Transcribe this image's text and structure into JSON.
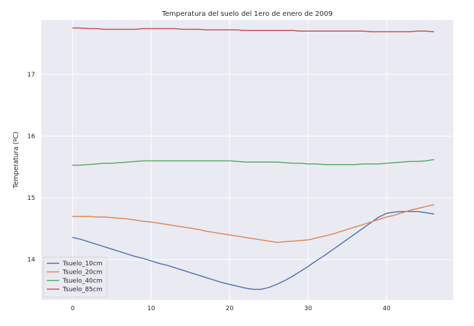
{
  "chart_data": {
    "type": "line",
    "title": "Temperatura del suelo del 1ero de enero de 2009",
    "xlabel": "",
    "ylabel": "Temperatura (ºC)",
    "xlim": [
      -4,
      48.5
    ],
    "ylim": [
      13.35,
      17.88
    ],
    "xticks": [
      0,
      10,
      20,
      30,
      40
    ],
    "yticks": [
      14,
      15,
      16,
      17
    ],
    "grid": true,
    "legend_position": "lower-left",
    "x": [
      0,
      1,
      2,
      3,
      4,
      5,
      6,
      7,
      8,
      9,
      10,
      11,
      12,
      13,
      14,
      15,
      16,
      17,
      18,
      19,
      20,
      21,
      22,
      23,
      24,
      25,
      26,
      27,
      28,
      29,
      30,
      31,
      32,
      33,
      34,
      35,
      36,
      37,
      38,
      39,
      40,
      41,
      42,
      43,
      44,
      45,
      46
    ],
    "series": [
      {
        "name": "Tsuelo_10cm",
        "color": "#4c72b0",
        "values": [
          14.36,
          14.33,
          14.29,
          14.25,
          14.21,
          14.17,
          14.13,
          14.09,
          14.05,
          14.02,
          13.98,
          13.94,
          13.91,
          13.87,
          13.83,
          13.79,
          13.75,
          13.71,
          13.67,
          13.63,
          13.6,
          13.57,
          13.54,
          13.52,
          13.52,
          13.55,
          13.6,
          13.66,
          13.73,
          13.81,
          13.89,
          13.98,
          14.06,
          14.15,
          14.24,
          14.33,
          14.42,
          14.51,
          14.6,
          14.69,
          14.75,
          14.77,
          14.78,
          14.78,
          14.78,
          14.76,
          14.74
        ]
      },
      {
        "name": "Tsuelo_20cm",
        "color": "#dd8452",
        "values": [
          14.7,
          14.7,
          14.7,
          14.69,
          14.69,
          14.68,
          14.67,
          14.66,
          14.64,
          14.62,
          14.61,
          14.59,
          14.57,
          14.55,
          14.53,
          14.51,
          14.49,
          14.46,
          14.44,
          14.42,
          14.4,
          14.38,
          14.36,
          14.34,
          14.32,
          14.3,
          14.28,
          14.29,
          14.3,
          14.31,
          14.32,
          14.35,
          14.38,
          14.41,
          14.45,
          14.49,
          14.53,
          14.57,
          14.61,
          14.65,
          14.69,
          14.72,
          14.76,
          14.8,
          14.83,
          14.86,
          14.89
        ]
      },
      {
        "name": "Tsuelo_40cm",
        "color": "#55a868",
        "values": [
          15.53,
          15.53,
          15.54,
          15.55,
          15.56,
          15.56,
          15.57,
          15.58,
          15.59,
          15.6,
          15.6,
          15.6,
          15.6,
          15.6,
          15.6,
          15.6,
          15.6,
          15.6,
          15.6,
          15.6,
          15.6,
          15.59,
          15.58,
          15.58,
          15.58,
          15.58,
          15.58,
          15.57,
          15.56,
          15.56,
          15.55,
          15.55,
          15.54,
          15.54,
          15.54,
          15.54,
          15.54,
          15.55,
          15.55,
          15.55,
          15.56,
          15.57,
          15.58,
          15.59,
          15.59,
          15.6,
          15.62
        ]
      },
      {
        "name": "Tsuelo_85cm",
        "color": "#c44e52",
        "values": [
          17.75,
          17.75,
          17.74,
          17.74,
          17.73,
          17.73,
          17.73,
          17.73,
          17.73,
          17.74,
          17.74,
          17.74,
          17.74,
          17.74,
          17.73,
          17.73,
          17.73,
          17.72,
          17.72,
          17.72,
          17.72,
          17.72,
          17.71,
          17.71,
          17.71,
          17.71,
          17.71,
          17.71,
          17.71,
          17.7,
          17.7,
          17.7,
          17.7,
          17.7,
          17.7,
          17.7,
          17.7,
          17.7,
          17.69,
          17.69,
          17.69,
          17.69,
          17.69,
          17.69,
          17.7,
          17.7,
          17.69
        ]
      }
    ]
  }
}
